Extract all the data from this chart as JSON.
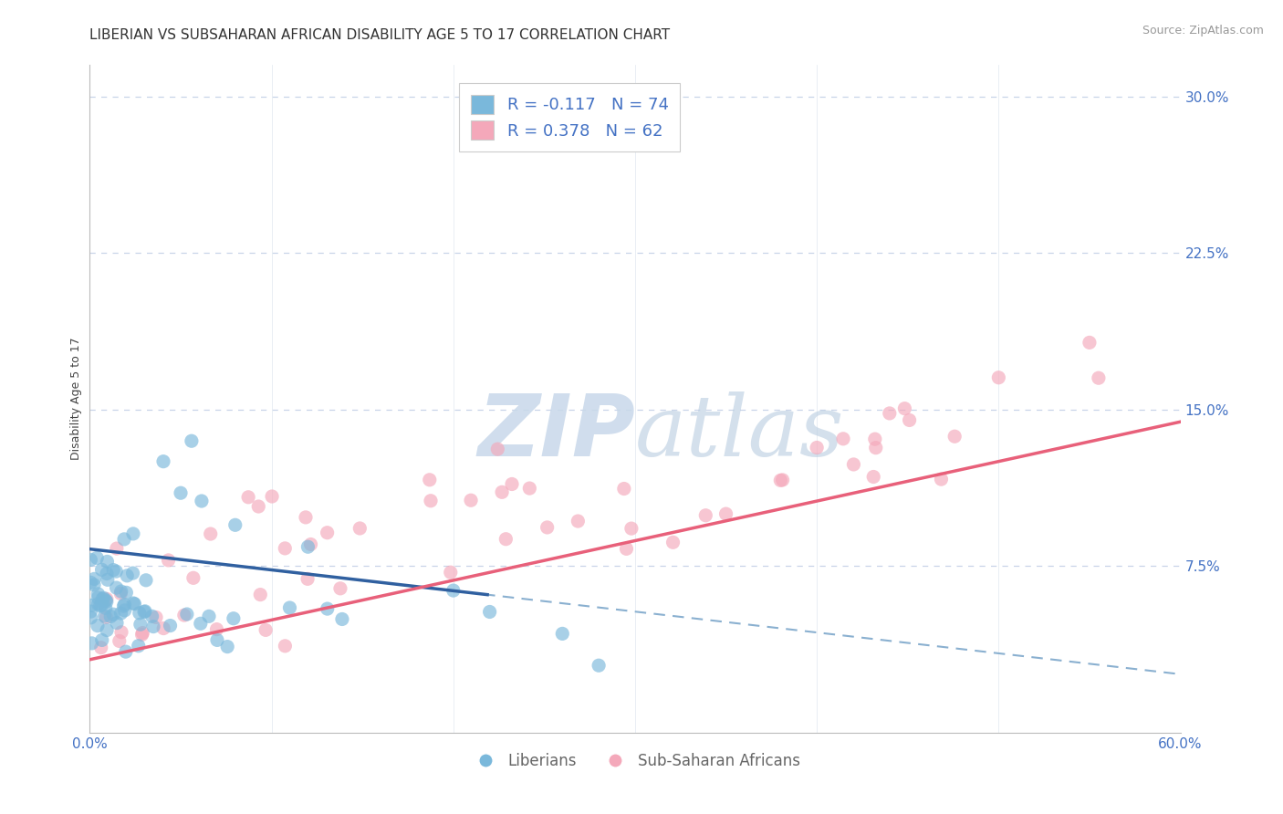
{
  "title": "LIBERIAN VS SUBSAHARAN AFRICAN DISABILITY AGE 5 TO 17 CORRELATION CHART",
  "source": "Source: ZipAtlas.com",
  "ylabel": "Disability Age 5 to 17",
  "xlim": [
    0.0,
    0.6
  ],
  "ylim": [
    -0.005,
    0.315
  ],
  "yticks": [
    0.0,
    0.075,
    0.15,
    0.225,
    0.3
  ],
  "xticks": [
    0.0,
    0.1,
    0.2,
    0.3,
    0.4,
    0.5,
    0.6
  ],
  "legend_blue_label": "R = -0.117   N = 74",
  "legend_pink_label": "R = 0.378   N = 62",
  "liberian_label": "Liberians",
  "subsaharan_label": "Sub-Saharan Africans",
  "blue_color": "#7ab8db",
  "pink_color": "#f4a8ba",
  "blue_line_color": "#3060a0",
  "pink_line_color": "#e8607a",
  "blue_dashed_color": "#8ab0d0",
  "title_fontsize": 11,
  "axis_label_fontsize": 9,
  "tick_fontsize": 11,
  "legend_fontsize": 13,
  "source_fontsize": 9,
  "background_color": "#ffffff",
  "grid_color": "#c8d4e8",
  "watermark_color": "#c8d8ea",
  "tick_color": "#4472c4",
  "blue_line_intercept": 0.083,
  "blue_line_slope": -0.1,
  "blue_solid_xend": 0.22,
  "pink_line_intercept": 0.03,
  "pink_line_slope": 0.19,
  "pink_solid_xend": 0.6
}
